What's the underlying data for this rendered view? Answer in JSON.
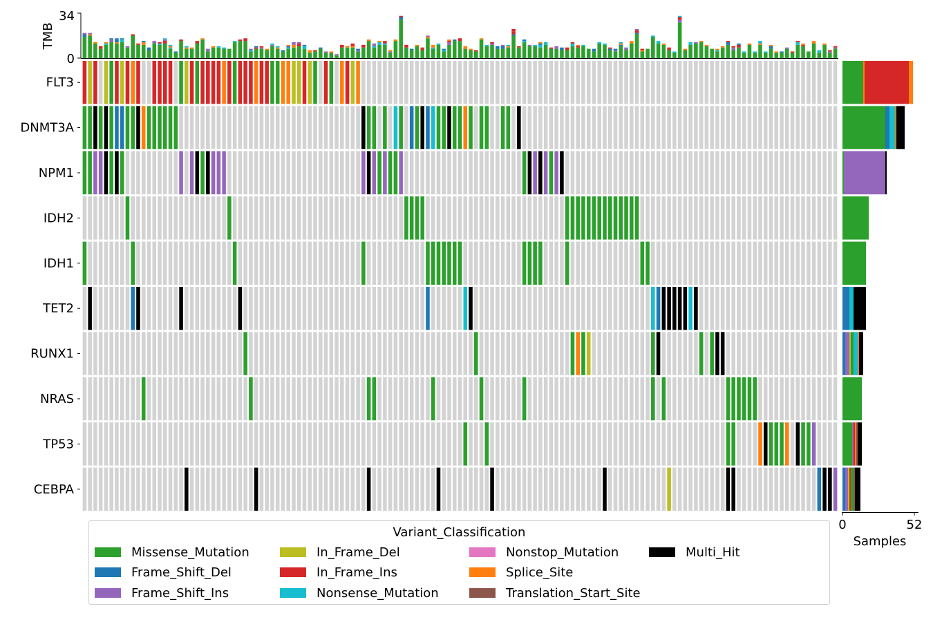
{
  "chart_data": {
    "type": "oncoplot",
    "tmb": {
      "ylabel": "TMB",
      "ylim": [
        0,
        34
      ],
      "tick_labels": [
        "0",
        "34"
      ]
    },
    "genes": [
      "FLT3",
      "DNMT3A",
      "NPM1",
      "IDH2",
      "IDH1",
      "TET2",
      "RUNX1",
      "NRAS",
      "TP53",
      "CEBPA"
    ],
    "samples_axis": {
      "xlabel": "Samples",
      "xlim": [
        0,
        52
      ],
      "tick_labels": [
        "0",
        "52"
      ]
    },
    "gene_counts": [
      {
        "gene": "FLT3",
        "Missense_Mutation": 15,
        "Splice_Site": 1,
        "In_Frame_Ins": 32,
        "Multi_Hit": 0,
        "Splice_Site_tail": 3
      },
      {
        "gene": "DNMT3A",
        "Missense_Mutation": 31,
        "Frame_Shift_Del": 3,
        "Nonsense_Mutation": 4,
        "Splice_Site": 1,
        "Multi_Hit": 6
      },
      {
        "gene": "NPM1",
        "Missense_Mutation": 1,
        "Frame_Shift_Ins": 30,
        "Multi_Hit": 1
      },
      {
        "gene": "IDH2",
        "Missense_Mutation": 19
      },
      {
        "gene": "IDH1",
        "Missense_Mutation": 17
      },
      {
        "gene": "TET2",
        "Frame_Shift_Del": 5,
        "Nonsense_Mutation": 3,
        "Multi_Hit": 9
      },
      {
        "gene": "RUNX1",
        "Frame_Shift_Del": 2,
        "Frame_Shift_Ins": 3,
        "In_Frame_Del": 1,
        "Missense_Mutation": 2,
        "Nonsense_Mutation": 3,
        "Splice_Site": 1,
        "Multi_Hit": 3
      },
      {
        "gene": "NRAS",
        "Missense_Mutation": 14
      },
      {
        "gene": "TP53",
        "Missense_Mutation": 7,
        "Frame_Shift_Ins": 1,
        "In_Frame_Ins": 1,
        "Splice_Site": 1,
        "Translation_Start_Site": 1,
        "Multi_Hit": 3
      },
      {
        "gene": "CEBPA",
        "Frame_Shift_Del": 2,
        "Frame_Shift_Ins": 2,
        "In_Frame_Del": 1,
        "In_Frame_Ins": 1,
        "Missense_Mutation": 2,
        "Translation_Start_Site": 1,
        "Multi_Hit": 4
      }
    ],
    "legend": {
      "title": "Variant_Classification",
      "items": [
        {
          "label": "Missense_Mutation",
          "color": "#2ca02c"
        },
        {
          "label": "Frame_Shift_Del",
          "color": "#1f77b4"
        },
        {
          "label": "Frame_Shift_Ins",
          "color": "#9467bd"
        },
        {
          "label": "In_Frame_Del",
          "color": "#bcbd22"
        },
        {
          "label": "In_Frame_Ins",
          "color": "#d62728"
        },
        {
          "label": "Nonsense_Mutation",
          "color": "#17becf"
        },
        {
          "label": "Nonstop_Mutation",
          "color": "#e377c2"
        },
        {
          "label": "Splice_Site",
          "color": "#ff7f0e"
        },
        {
          "label": "Translation_Start_Site",
          "color": "#8c564b"
        },
        {
          "label": "Multi_Hit",
          "color": "#000000"
        }
      ]
    },
    "colors": {
      "Missense_Mutation": "#2ca02c",
      "Frame_Shift_Del": "#1f77b4",
      "Frame_Shift_Ins": "#9467bd",
      "In_Frame_Del": "#bcbd22",
      "In_Frame_Ins": "#d62728",
      "Nonsense_Mutation": "#17becf",
      "Nonstop_Mutation": "#e377c2",
      "Splice_Site": "#ff7f0e",
      "Translation_Start_Site": "#8c564b",
      "Multi_Hit": "#000000",
      "None": "#d3d3d3"
    }
  }
}
